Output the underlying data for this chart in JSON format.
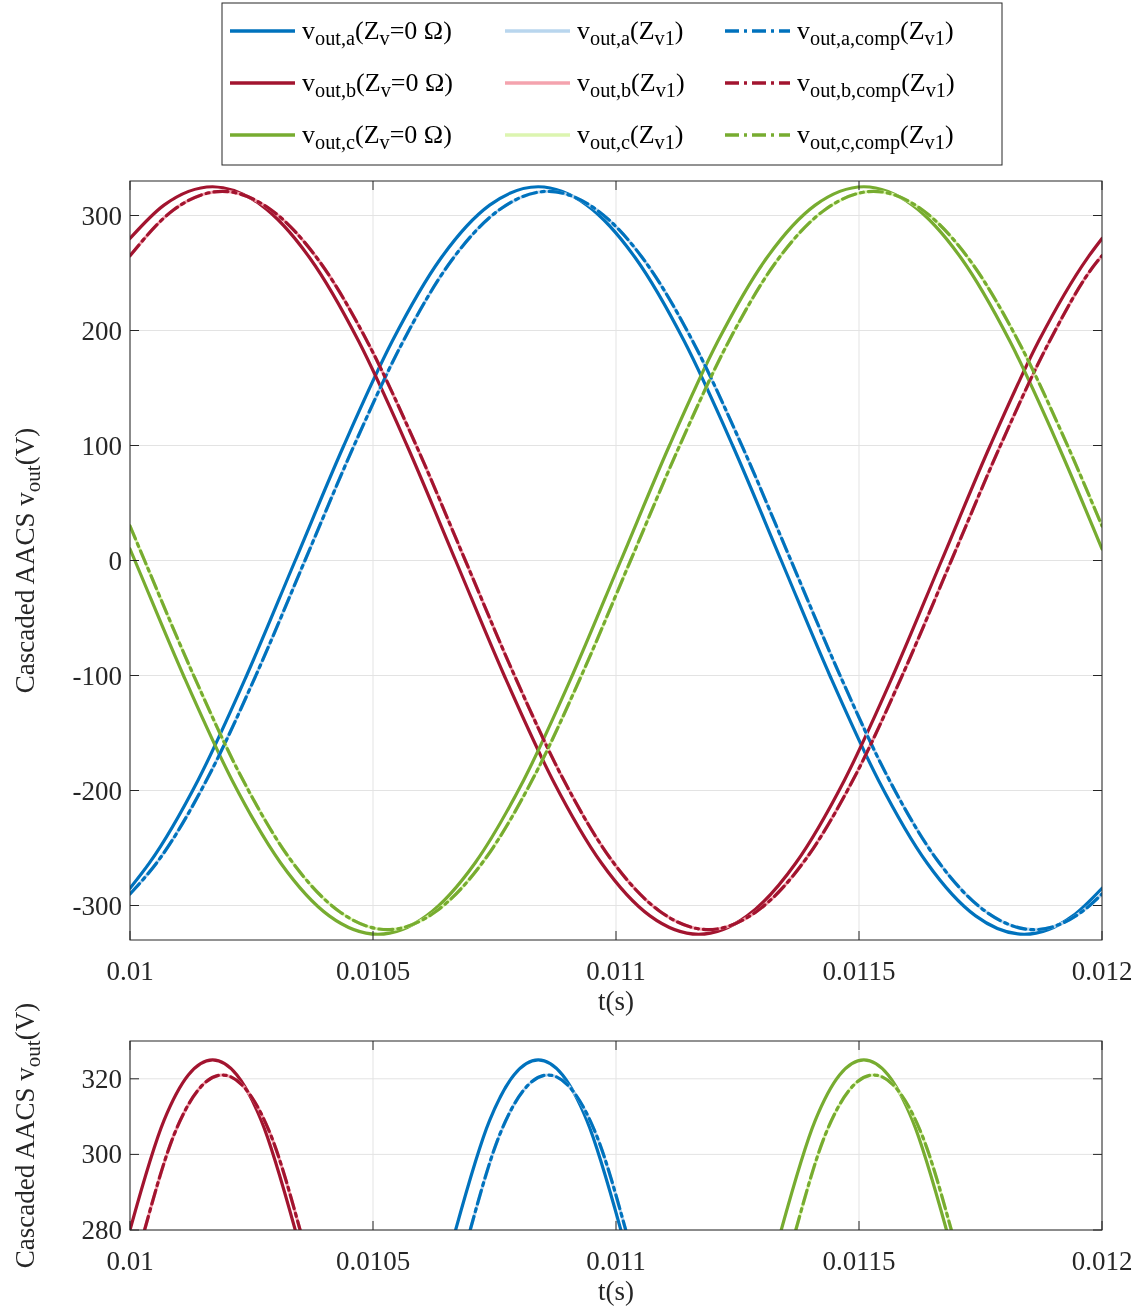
{
  "chart_data": [
    {
      "type": "line",
      "xlabel": "t(s)",
      "ylabel": "Cascaded AACS v$_{out}$(V)",
      "xlim": [
        0.01,
        0.012
      ],
      "xticks": [
        0.01,
        0.0105,
        0.011,
        0.0115,
        0.012
      ],
      "ylim": [
        -330,
        330
      ],
      "yticks": [
        -300,
        -200,
        -100,
        0,
        100,
        200,
        300
      ],
      "grid": true,
      "legend": "top",
      "series": [
        {
          "name": "v$_{out,a}$(Z$_{v}$=0 Ω)",
          "color": "#0072bd",
          "line_style": "solid",
          "x": [
            0.01,
            0.01004,
            0.01014,
            0.01024,
            0.01034,
            0.01044,
            0.01054,
            0.01064,
            0.01074,
            0.01084,
            0.01094,
            0.01104,
            0.01114,
            0.01124,
            0.01134,
            0.01144,
            0.01154,
            0.01164,
            0.01174,
            0.01184,
            0.01194,
            0.012
          ],
          "values": [
            -285,
            -263,
            -191,
            -100,
            0,
            100,
            191,
            263,
            309,
            325,
            309,
            263,
            191,
            100,
            0,
            -100,
            -191,
            -263,
            -309,
            -325,
            -309,
            -285
          ]
        },
        {
          "name": "v$_{out,b}$(Z$_{v}$=0 Ω)",
          "color": "#a2142f",
          "line_style": "solid",
          "x": [
            0.01,
            0.01007,
            0.01017,
            0.01027,
            0.01037,
            0.01047,
            0.01057,
            0.01067,
            0.01077,
            0.01087,
            0.01097,
            0.01107,
            0.01117,
            0.01127,
            0.01137,
            0.01147,
            0.01157,
            0.01167,
            0.01177,
            0.01187,
            0.01197,
            0.012
          ],
          "values": [
            280,
            309,
            325,
            309,
            263,
            191,
            100,
            0,
            -100,
            -191,
            -263,
            -309,
            -325,
            -309,
            -263,
            -191,
            -100,
            0,
            100,
            191,
            263,
            280
          ]
        },
        {
          "name": "v$_{out,c}$(Z$_{v}$=0 Ω)",
          "color": "#77ac30",
          "line_style": "solid",
          "x": [
            0.01,
            0.01001,
            0.01011,
            0.01021,
            0.01031,
            0.01041,
            0.01051,
            0.01061,
            0.01071,
            0.01081,
            0.01091,
            0.01101,
            0.01111,
            0.01121,
            0.01131,
            0.01141,
            0.01151,
            0.01161,
            0.01171,
            0.01181,
            0.01191,
            0.012
          ],
          "values": [
            10,
            0,
            -100,
            -191,
            -263,
            -309,
            -325,
            -309,
            -263,
            -191,
            -100,
            0,
            100,
            191,
            263,
            309,
            325,
            309,
            263,
            191,
            100,
            10
          ]
        },
        {
          "name": "v$_{out,a}$(Z$_{v1}$)",
          "color": "#b9d6ee",
          "line_style": "solid",
          "x": [
            0.01,
            0.01006,
            0.01016,
            0.01026,
            0.01036,
            0.01046,
            0.01056,
            0.01066,
            0.01076,
            0.01086,
            0.01096,
            0.01106,
            0.01116,
            0.01126,
            0.01136,
            0.01146,
            0.01156,
            0.01166,
            0.01176,
            0.01186,
            0.01196,
            0.012
          ],
          "values": [
            -290,
            -260,
            -189,
            -99,
            0,
            99,
            189,
            260,
            305,
            321,
            305,
            260,
            189,
            99,
            0,
            -99,
            -189,
            -260,
            -305,
            -321,
            -305,
            -290
          ]
        },
        {
          "name": "v$_{out,b}$(Z$_{v1}$)",
          "color": "#f4a3ae",
          "line_style": "solid",
          "x": [
            0.01,
            0.01009,
            0.01019,
            0.01029,
            0.01039,
            0.01049,
            0.01059,
            0.01069,
            0.01079,
            0.01089,
            0.01099,
            0.01109,
            0.01119,
            0.01129,
            0.01139,
            0.01149,
            0.01159,
            0.01169,
            0.01179,
            0.01189,
            0.01199,
            0.012
          ],
          "values": [
            265,
            305,
            321,
            305,
            260,
            189,
            99,
            0,
            -99,
            -189,
            -260,
            -305,
            -321,
            -305,
            -260,
            -189,
            -99,
            0,
            99,
            189,
            260,
            265
          ]
        },
        {
          "name": "v$_{out,c}$(Z$_{v1}$)",
          "color": "#dcf5b0",
          "line_style": "solid",
          "x": [
            0.01,
            0.01003,
            0.01013,
            0.01023,
            0.01033,
            0.01043,
            0.01053,
            0.01063,
            0.01073,
            0.01083,
            0.01093,
            0.01103,
            0.01113,
            0.01123,
            0.01133,
            0.01143,
            0.01153,
            0.01163,
            0.01173,
            0.01183,
            0.01193,
            0.012
          ],
          "values": [
            30,
            0,
            -99,
            -189,
            -260,
            -305,
            -321,
            -305,
            -260,
            -189,
            -99,
            0,
            99,
            189,
            260,
            305,
            321,
            305,
            260,
            189,
            99,
            30
          ]
        },
        {
          "name": "v$_{out,a,comp}$(Z$_{v1}$)",
          "color": "#0072bd",
          "line_style": "dashed",
          "x": [
            0.01,
            0.01006,
            0.01016,
            0.01026,
            0.01036,
            0.01046,
            0.01056,
            0.01066,
            0.01076,
            0.01086,
            0.01096,
            0.01106,
            0.01116,
            0.01126,
            0.01136,
            0.01146,
            0.01156,
            0.01166,
            0.01176,
            0.01186,
            0.01196,
            0.012
          ],
          "values": [
            -290,
            -260,
            -189,
            -99,
            0,
            99,
            189,
            260,
            305,
            321,
            305,
            260,
            189,
            99,
            0,
            -99,
            -189,
            -260,
            -305,
            -321,
            -305,
            -290
          ]
        },
        {
          "name": "v$_{out,b,comp}$(Z$_{v1}$)",
          "color": "#a2142f",
          "line_style": "dashed",
          "x": [
            0.01,
            0.01009,
            0.01019,
            0.01029,
            0.01039,
            0.01049,
            0.01059,
            0.01069,
            0.01079,
            0.01089,
            0.01099,
            0.01109,
            0.01119,
            0.01129,
            0.01139,
            0.01149,
            0.01159,
            0.01169,
            0.01179,
            0.01189,
            0.01199,
            0.012
          ],
          "values": [
            265,
            305,
            321,
            305,
            260,
            189,
            99,
            0,
            -99,
            -189,
            -260,
            -305,
            -321,
            -305,
            -260,
            -189,
            -99,
            0,
            99,
            189,
            260,
            265
          ]
        },
        {
          "name": "v$_{out,c,comp}$(Z$_{v1}$)",
          "color": "#77ac30",
          "line_style": "dashed",
          "x": [
            0.01,
            0.01003,
            0.01013,
            0.01023,
            0.01033,
            0.01043,
            0.01053,
            0.01063,
            0.01073,
            0.01083,
            0.01093,
            0.01103,
            0.01113,
            0.01123,
            0.01133,
            0.01143,
            0.01153,
            0.01163,
            0.01173,
            0.01183,
            0.01193,
            0.012
          ],
          "values": [
            30,
            0,
            -99,
            -189,
            -260,
            -305,
            -321,
            -305,
            -260,
            -189,
            -99,
            0,
            99,
            189,
            260,
            305,
            321,
            305,
            260,
            189,
            99,
            30
          ]
        }
      ]
    },
    {
      "type": "line",
      "xlabel": "t(s)",
      "ylabel": "Cascaded AACS v$_{out}$(V)",
      "xlim": [
        0.01,
        0.012
      ],
      "xticks": [
        0.01,
        0.0105,
        0.011,
        0.0115,
        0.012
      ],
      "ylim": [
        280,
        330
      ],
      "yticks": [
        280,
        300,
        320
      ],
      "grid": true,
      "series": [
        {
          "color": "#0072bd",
          "line_style": "solid",
          "x": [
            0.01067,
            0.01074,
            0.01079,
            0.01084,
            0.01089,
            0.01094,
            0.01101
          ],
          "values": [
            280,
            309,
            321,
            325,
            321,
            309,
            280
          ]
        },
        {
          "color": "#a2142f",
          "line_style": "solid",
          "x": [
            0.01,
            0.01007,
            0.01012,
            0.01017,
            0.01022,
            0.01027,
            0.01034
          ],
          "values": [
            280,
            309,
            321,
            325,
            321,
            309,
            280
          ]
        },
        {
          "color": "#77ac30",
          "line_style": "solid",
          "x": [
            0.01134,
            0.01141,
            0.01146,
            0.01151,
            0.01156,
            0.01161,
            0.01168
          ],
          "values": [
            280,
            309,
            321,
            325,
            321,
            309,
            280
          ]
        },
        {
          "color": "#b9d6ee",
          "line_style": "solid",
          "x": [
            0.0107,
            0.01076,
            0.01081,
            0.01086,
            0.01091,
            0.01096,
            0.01102
          ],
          "values": [
            280,
            305,
            317,
            321,
            317,
            305,
            280
          ]
        },
        {
          "color": "#f4a3ae",
          "line_style": "solid",
          "x": [
            0.01003,
            0.01009,
            0.01014,
            0.01019,
            0.01024,
            0.01029,
            0.01035
          ],
          "values": [
            280,
            305,
            317,
            321,
            317,
            305,
            280
          ]
        },
        {
          "color": "#dcf5b0",
          "line_style": "solid",
          "x": [
            0.01137,
            0.01143,
            0.01148,
            0.01153,
            0.01158,
            0.01163,
            0.01169
          ],
          "values": [
            280,
            305,
            317,
            321,
            317,
            305,
            280
          ]
        },
        {
          "color": "#0072bd",
          "line_style": "dashed",
          "x": [
            0.0107,
            0.01076,
            0.01081,
            0.01086,
            0.01091,
            0.01096,
            0.01102
          ],
          "values": [
            280,
            305,
            317,
            321,
            317,
            305,
            280
          ]
        },
        {
          "color": "#a2142f",
          "line_style": "dashed",
          "x": [
            0.01003,
            0.01009,
            0.01014,
            0.01019,
            0.01024,
            0.01029,
            0.01035
          ],
          "values": [
            280,
            305,
            317,
            321,
            317,
            305,
            280
          ]
        },
        {
          "color": "#77ac30",
          "line_style": "dashed",
          "x": [
            0.01137,
            0.01143,
            0.01148,
            0.01153,
            0.01158,
            0.01163,
            0.01169
          ],
          "values": [
            280,
            305,
            317,
            321,
            317,
            305,
            280
          ]
        }
      ]
    }
  ]
}
